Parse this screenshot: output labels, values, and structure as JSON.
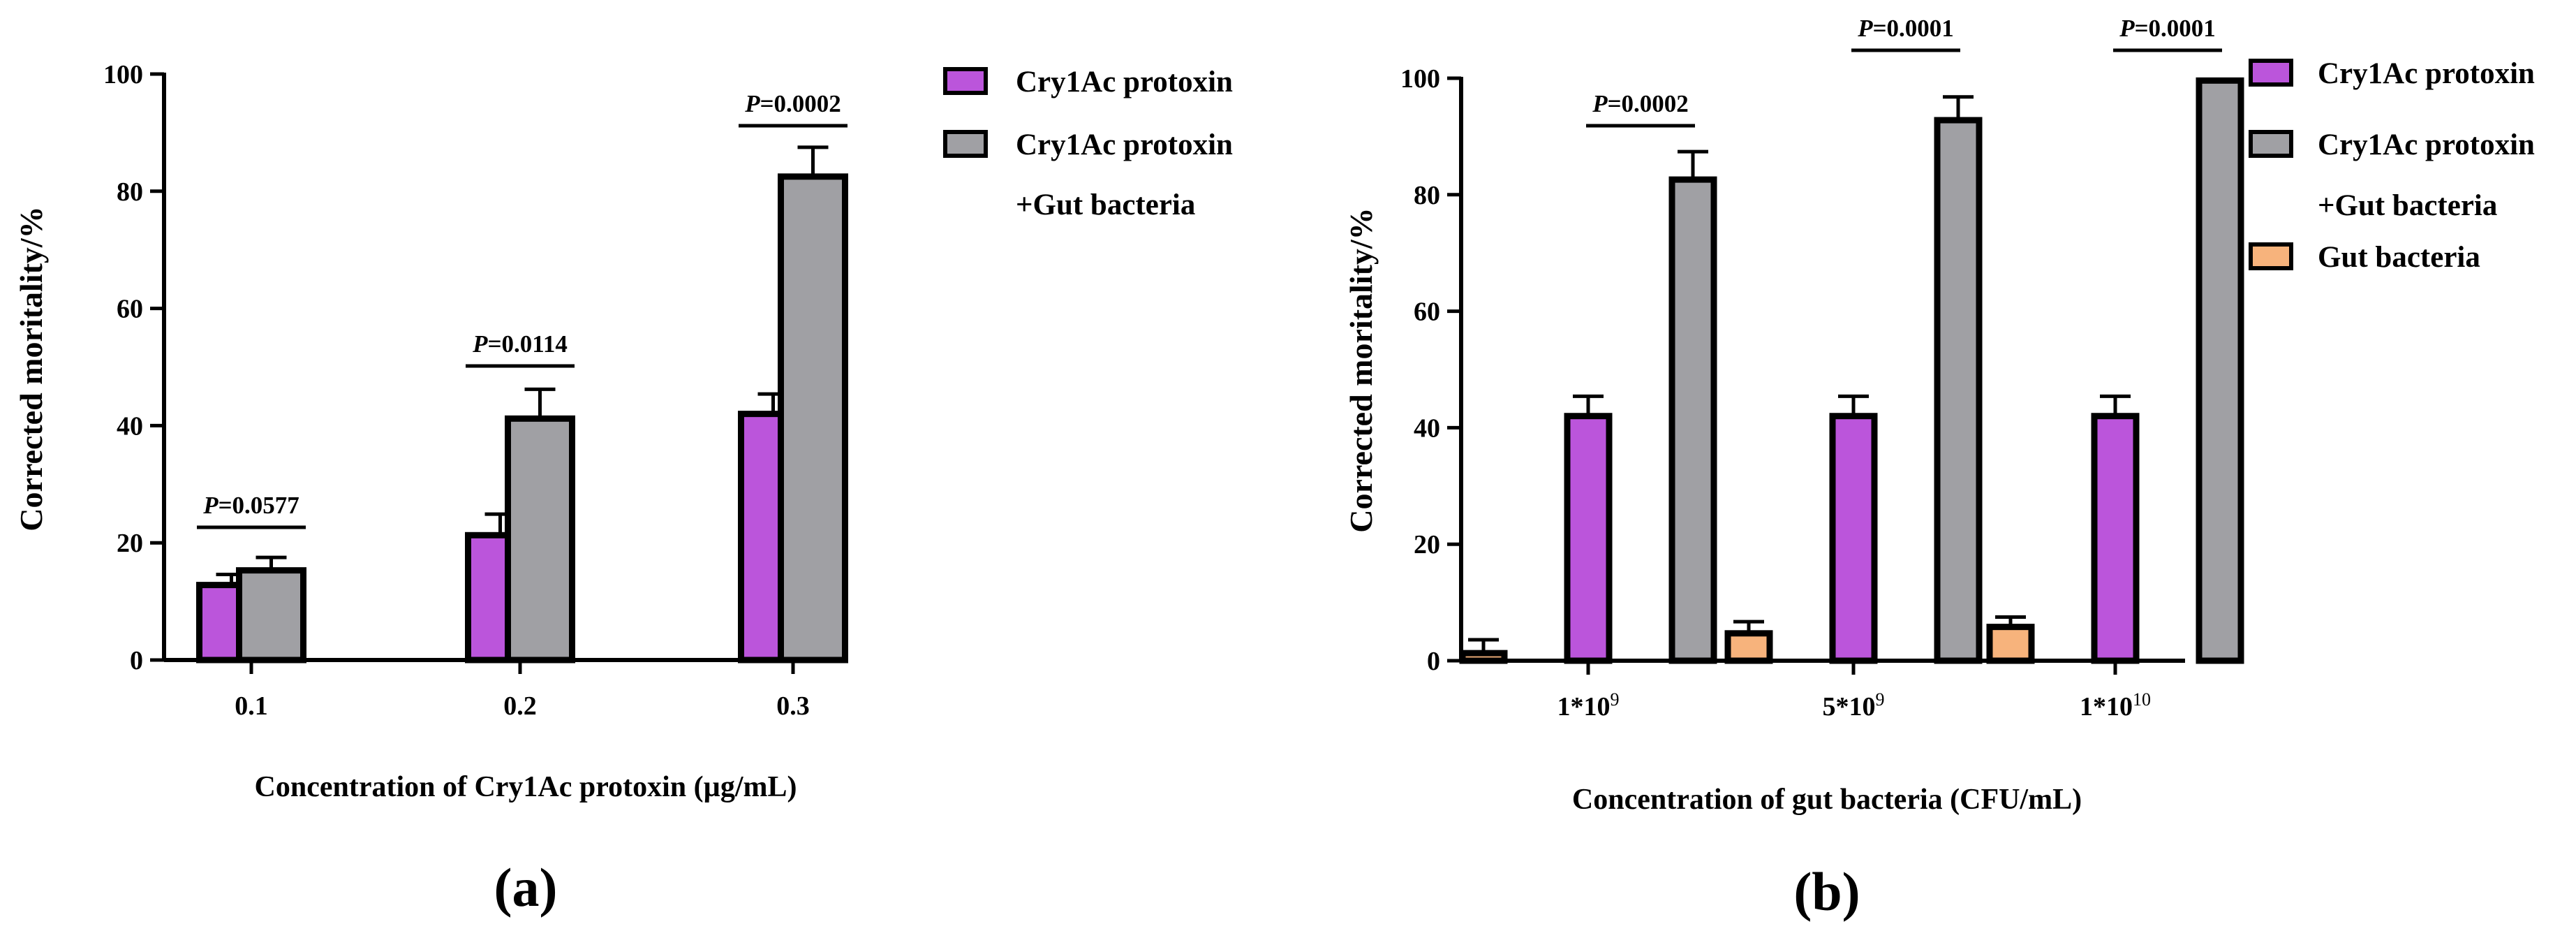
{
  "chart_data": [
    {
      "type": "bar",
      "panel_label": "(a)",
      "xlabel": "Concentration of Cry1Ac protoxin (µg/mL)",
      "ylabel": "Corrected moritality/%",
      "ylim": [
        0,
        100
      ],
      "yticks": [
        "0",
        "20",
        "40",
        "60",
        "80",
        "100"
      ],
      "categories": [
        "0.1",
        "0.2",
        "0.3"
      ],
      "series": [
        {
          "name": "Cry1Ac protoxin",
          "color": "#bb55db",
          "values": [
            12.8,
            21.3,
            42.0
          ],
          "errors": [
            1.8,
            3.6,
            3.4
          ]
        },
        {
          "name": "Cry1Ac protoxin +Gut bacteria",
          "color": "#a0a0a4",
          "values": [
            15.3,
            41.2,
            82.5
          ],
          "errors": [
            2.2,
            5.0,
            5.0
          ]
        }
      ],
      "legend": [
        {
          "lines": [
            "Cry1Ac protoxin"
          ],
          "color": "#bb55db"
        },
        {
          "lines": [
            "Cry1Ac protoxin",
            "+Gut bacteria"
          ],
          "color": "#a0a0a4"
        }
      ],
      "legend_position": "right",
      "annotations": [
        {
          "p": "P",
          "text": "=0.0577"
        },
        {
          "p": "P",
          "text": "=0.0114"
        },
        {
          "p": "P",
          "text": "=0.0002"
        }
      ]
    },
    {
      "type": "bar",
      "panel_label": "(b)",
      "xlabel": "Concentration of gut bacteria (CFU/mL)",
      "ylabel": "Corrected moritality/%",
      "ylim": [
        0,
        100
      ],
      "yticks": [
        "0",
        "20",
        "40",
        "60",
        "80",
        "100"
      ],
      "categories": [
        {
          "base": "1*10",
          "exp": "9"
        },
        {
          "base": "5*10",
          "exp": "9"
        },
        {
          "base": "1*10",
          "exp": "10"
        }
      ],
      "series": [
        {
          "name": "Gut bacteria",
          "color": "#f7b37c",
          "values": [
            1.3,
            4.7,
            5.8
          ],
          "errors": [
            2.3,
            2.0,
            1.7
          ]
        },
        {
          "name": "Cry1Ac protoxin",
          "color": "#bb55db",
          "values": [
            42.0,
            42.0,
            42.0
          ],
          "errors": [
            3.4,
            3.4,
            3.4
          ]
        },
        {
          "name": "Cry1Ac protoxin +Gut bacteria",
          "color": "#a0a0a4",
          "values": [
            82.6,
            92.8,
            99.6
          ],
          "errors": [
            4.8,
            4.0,
            0.0
          ]
        }
      ],
      "legend": [
        {
          "lines": [
            "Cry1Ac protoxin"
          ],
          "color": "#bb55db"
        },
        {
          "lines": [
            "Cry1Ac protoxin",
            "+Gut bacteria"
          ],
          "color": "#a0a0a4"
        },
        {
          "lines": [
            "Gut bacteria"
          ],
          "color": "#f7b37c"
        }
      ],
      "legend_position": "right",
      "annotations": [
        {
          "p": "P",
          "text": "=0.0002"
        },
        {
          "p": "P",
          "text": "=0.0001"
        },
        {
          "p": "P",
          "text": "=0.0001"
        }
      ]
    }
  ]
}
